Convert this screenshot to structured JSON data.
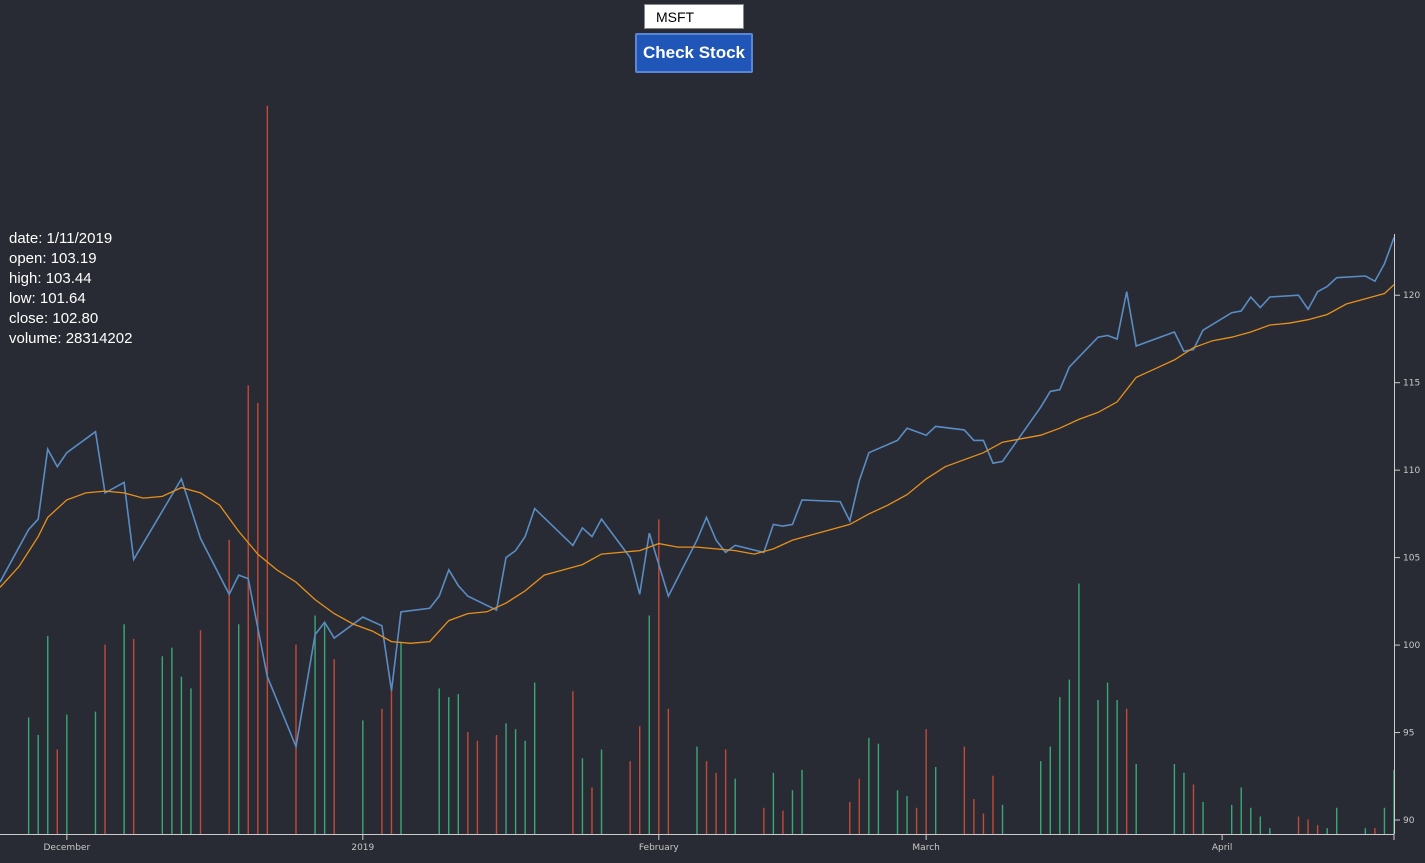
{
  "controls": {
    "ticker_value": "MSFT",
    "button_label": "Check Stock"
  },
  "info": {
    "date_label": "date:",
    "date": "1/11/2019",
    "open_label": "open:",
    "open": "103.19",
    "high_label": "high:",
    "high": "103.44",
    "low_label": "low:",
    "low": "101.64",
    "close_label": "close:",
    "close": "102.80",
    "volume_label": "volume:",
    "volume": "28314202"
  },
  "colors": {
    "background": "#282b33",
    "price_line": "#5a8cc3",
    "average_line": "#e8901c",
    "volume_up": "#3aa876",
    "volume_down": "#c24a38",
    "axis": "#cccccc"
  },
  "chart_data": {
    "type": "line",
    "x_ticks": [
      {
        "day": 6,
        "label": "December"
      },
      {
        "day": 37,
        "label": "2019"
      },
      {
        "day": 68,
        "label": "February"
      },
      {
        "day": 96,
        "label": "March"
      },
      {
        "day": 127,
        "label": "April"
      }
    ],
    "x_range": [
      -1,
      145
    ],
    "y_ticks": [
      90,
      95,
      100,
      105,
      110,
      115,
      120
    ],
    "ylim": [
      89.2,
      123.5
    ],
    "series": [
      {
        "kind": "price",
        "points": [
          [
            -1,
            103.6
          ],
          [
            2,
            106.6
          ],
          [
            3,
            107.2
          ],
          [
            4,
            111.2
          ],
          [
            5,
            110.2
          ],
          [
            6,
            111.0
          ],
          [
            9,
            112.2
          ],
          [
            10,
            108.7
          ],
          [
            12,
            109.3
          ],
          [
            13,
            104.9
          ],
          [
            18,
            109.5
          ],
          [
            20,
            106.1
          ],
          [
            23,
            102.9
          ],
          [
            24,
            104.0
          ],
          [
            25,
            103.8
          ],
          [
            27,
            98.2
          ],
          [
            30,
            94.2
          ],
          [
            32,
            100.6
          ],
          [
            33,
            101.3
          ],
          [
            34,
            100.4
          ],
          [
            37,
            101.6
          ],
          [
            39,
            101.1
          ],
          [
            40,
            97.4
          ],
          [
            41,
            101.9
          ],
          [
            44,
            102.1
          ],
          [
            45,
            102.8
          ],
          [
            46,
            104.3
          ],
          [
            47,
            103.4
          ],
          [
            48,
            102.8
          ],
          [
            51,
            102.0
          ],
          [
            52,
            105.0
          ],
          [
            53,
            105.4
          ],
          [
            54,
            106.2
          ],
          [
            55,
            107.8
          ],
          [
            59,
            105.7
          ],
          [
            60,
            106.7
          ],
          [
            61,
            106.2
          ],
          [
            62,
            107.2
          ],
          [
            65,
            105.0
          ],
          [
            66,
            102.9
          ],
          [
            67,
            106.4
          ],
          [
            69,
            102.8
          ],
          [
            72,
            106.0
          ],
          [
            73,
            107.3
          ],
          [
            74,
            106.0
          ],
          [
            75,
            105.3
          ],
          [
            76,
            105.7
          ],
          [
            79,
            105.3
          ],
          [
            80,
            106.9
          ],
          [
            81,
            106.8
          ],
          [
            82,
            106.9
          ],
          [
            83,
            108.3
          ],
          [
            87,
            108.2
          ],
          [
            88,
            107.1
          ],
          [
            89,
            109.4
          ],
          [
            90,
            111.0
          ],
          [
            93,
            111.7
          ],
          [
            94,
            112.4
          ],
          [
            96,
            112.0
          ],
          [
            97,
            112.5
          ],
          [
            100,
            112.3
          ],
          [
            101,
            111.7
          ],
          [
            102,
            111.7
          ],
          [
            103,
            110.4
          ],
          [
            104,
            110.5
          ],
          [
            108,
            113.6
          ],
          [
            109,
            114.5
          ],
          [
            110,
            114.6
          ],
          [
            111,
            115.9
          ],
          [
            114,
            117.6
          ],
          [
            115,
            117.7
          ],
          [
            116,
            117.5
          ],
          [
            117,
            120.2
          ],
          [
            118,
            117.1
          ],
          [
            122,
            117.9
          ],
          [
            123,
            116.8
          ],
          [
            124,
            116.9
          ],
          [
            125,
            118.0
          ],
          [
            128,
            119.0
          ],
          [
            129,
            119.1
          ],
          [
            130,
            119.9
          ],
          [
            131,
            119.3
          ],
          [
            132,
            119.9
          ],
          [
            135,
            120.0
          ],
          [
            136,
            119.2
          ],
          [
            137,
            120.2
          ],
          [
            138,
            120.5
          ],
          [
            139,
            121.0
          ],
          [
            142,
            121.1
          ],
          [
            143,
            120.8
          ],
          [
            144,
            121.8
          ],
          [
            145,
            123.3
          ]
        ]
      },
      {
        "kind": "moving_average",
        "points": [
          [
            -1,
            103.3
          ],
          [
            1,
            104.5
          ],
          [
            3,
            106.2
          ],
          [
            4,
            107.3
          ],
          [
            6,
            108.3
          ],
          [
            8,
            108.7
          ],
          [
            10,
            108.8
          ],
          [
            12,
            108.7
          ],
          [
            14,
            108.4
          ],
          [
            16,
            108.5
          ],
          [
            18,
            109.0
          ],
          [
            20,
            108.7
          ],
          [
            22,
            108.0
          ],
          [
            24,
            106.5
          ],
          [
            26,
            105.2
          ],
          [
            28,
            104.3
          ],
          [
            30,
            103.6
          ],
          [
            32,
            102.6
          ],
          [
            34,
            101.8
          ],
          [
            36,
            101.2
          ],
          [
            38,
            100.8
          ],
          [
            40,
            100.2
          ],
          [
            42,
            100.1
          ],
          [
            44,
            100.2
          ],
          [
            46,
            101.4
          ],
          [
            48,
            101.8
          ],
          [
            50,
            101.9
          ],
          [
            52,
            102.4
          ],
          [
            54,
            103.1
          ],
          [
            56,
            104.0
          ],
          [
            58,
            104.3
          ],
          [
            60,
            104.6
          ],
          [
            62,
            105.2
          ],
          [
            64,
            105.3
          ],
          [
            66,
            105.4
          ],
          [
            68,
            105.8
          ],
          [
            70,
            105.6
          ],
          [
            72,
            105.6
          ],
          [
            74,
            105.5
          ],
          [
            76,
            105.4
          ],
          [
            78,
            105.2
          ],
          [
            80,
            105.5
          ],
          [
            82,
            106.0
          ],
          [
            84,
            106.3
          ],
          [
            86,
            106.6
          ],
          [
            88,
            106.9
          ],
          [
            90,
            107.5
          ],
          [
            92,
            108.0
          ],
          [
            94,
            108.6
          ],
          [
            96,
            109.5
          ],
          [
            98,
            110.2
          ],
          [
            100,
            110.6
          ],
          [
            102,
            111.0
          ],
          [
            104,
            111.6
          ],
          [
            106,
            111.8
          ],
          [
            108,
            112.0
          ],
          [
            110,
            112.4
          ],
          [
            112,
            112.9
          ],
          [
            114,
            113.3
          ],
          [
            116,
            113.9
          ],
          [
            118,
            115.3
          ],
          [
            120,
            115.8
          ],
          [
            122,
            116.3
          ],
          [
            124,
            117.0
          ],
          [
            126,
            117.4
          ],
          [
            128,
            117.6
          ],
          [
            130,
            117.9
          ],
          [
            132,
            118.3
          ],
          [
            134,
            118.4
          ],
          [
            136,
            118.6
          ],
          [
            138,
            118.9
          ],
          [
            140,
            119.5
          ],
          [
            142,
            119.8
          ],
          [
            144,
            120.1
          ],
          [
            145,
            120.6
          ]
        ]
      }
    ],
    "volume": {
      "max": 69,
      "bars": [
        [
          2,
          40,
          "up"
        ],
        [
          3,
          34,
          "up"
        ],
        [
          4,
          68,
          "up"
        ],
        [
          5,
          29,
          "down"
        ],
        [
          6,
          41,
          "up"
        ],
        [
          9,
          42,
          "up"
        ],
        [
          10,
          65,
          "down"
        ],
        [
          12,
          72,
          "up"
        ],
        [
          13,
          67,
          "down"
        ],
        [
          16,
          61,
          "up"
        ],
        [
          17,
          64,
          "up"
        ],
        [
          18,
          54,
          "up"
        ],
        [
          19,
          50,
          "up"
        ],
        [
          20,
          70,
          "down"
        ],
        [
          23,
          101,
          "down"
        ],
        [
          24,
          72,
          "up"
        ],
        [
          25,
          154,
          "down"
        ],
        [
          26,
          148,
          "down"
        ],
        [
          27,
          250,
          "down"
        ],
        [
          30,
          65,
          "down"
        ],
        [
          32,
          75,
          "up"
        ],
        [
          33,
          72,
          "up"
        ],
        [
          34,
          60,
          "down"
        ],
        [
          37,
          39,
          "up"
        ],
        [
          39,
          43,
          "down"
        ],
        [
          40,
          51,
          "down"
        ],
        [
          41,
          66,
          "up"
        ],
        [
          45,
          50,
          "up"
        ],
        [
          46,
          47,
          "up"
        ],
        [
          47,
          48,
          "up"
        ],
        [
          48,
          35,
          "down"
        ],
        [
          49,
          32,
          "down"
        ],
        [
          51,
          34,
          "down"
        ],
        [
          52,
          38,
          "up"
        ],
        [
          53,
          36,
          "up"
        ],
        [
          54,
          32,
          "up"
        ],
        [
          55,
          52,
          "up"
        ],
        [
          59,
          49,
          "down"
        ],
        [
          60,
          26,
          "up"
        ],
        [
          61,
          16,
          "down"
        ],
        [
          62,
          29,
          "up"
        ],
        [
          65,
          25,
          "down"
        ],
        [
          66,
          37,
          "down"
        ],
        [
          67,
          75,
          "up"
        ],
        [
          68,
          108,
          "down"
        ],
        [
          69,
          43,
          "down"
        ],
        [
          72,
          30,
          "up"
        ],
        [
          73,
          25,
          "down"
        ],
        [
          74,
          21,
          "down"
        ],
        [
          75,
          29,
          "down"
        ],
        [
          76,
          19,
          "up"
        ],
        [
          79,
          9,
          "down"
        ],
        [
          80,
          21,
          "up"
        ],
        [
          81,
          8,
          "down"
        ],
        [
          82,
          15,
          "up"
        ],
        [
          83,
          22,
          "up"
        ],
        [
          88,
          11,
          "down"
        ],
        [
          89,
          19,
          "down"
        ],
        [
          90,
          33,
          "up"
        ],
        [
          91,
          31,
          "up"
        ],
        [
          93,
          15,
          "up"
        ],
        [
          94,
          13,
          "up"
        ],
        [
          95,
          9,
          "down"
        ],
        [
          96,
          36,
          "down"
        ],
        [
          97,
          23,
          "up"
        ],
        [
          100,
          30,
          "down"
        ],
        [
          101,
          12,
          "down"
        ],
        [
          102,
          7,
          "down"
        ],
        [
          103,
          20,
          "down"
        ],
        [
          104,
          10,
          "up"
        ],
        [
          108,
          25,
          "up"
        ],
        [
          109,
          30,
          "up"
        ],
        [
          110,
          47,
          "up"
        ],
        [
          111,
          53,
          "up"
        ],
        [
          112,
          86,
          "up"
        ],
        [
          114,
          46,
          "up"
        ],
        [
          115,
          52,
          "up"
        ],
        [
          116,
          46,
          "up"
        ],
        [
          117,
          43,
          "down"
        ],
        [
          118,
          24,
          "up"
        ],
        [
          122,
          24,
          "up"
        ],
        [
          123,
          21,
          "up"
        ],
        [
          124,
          17,
          "down"
        ],
        [
          125,
          11,
          "up"
        ],
        [
          128,
          10,
          "up"
        ],
        [
          129,
          16,
          "up"
        ],
        [
          130,
          9,
          "up"
        ],
        [
          131,
          6,
          "up"
        ],
        [
          132,
          2,
          "up"
        ],
        [
          135,
          6,
          "down"
        ],
        [
          136,
          5,
          "down"
        ],
        [
          137,
          3,
          "down"
        ],
        [
          138,
          2,
          "up"
        ],
        [
          139,
          9,
          "up"
        ],
        [
          142,
          2,
          "up"
        ],
        [
          143,
          2,
          "down"
        ],
        [
          144,
          9,
          "up"
        ],
        [
          145,
          22,
          "up"
        ]
      ]
    }
  }
}
